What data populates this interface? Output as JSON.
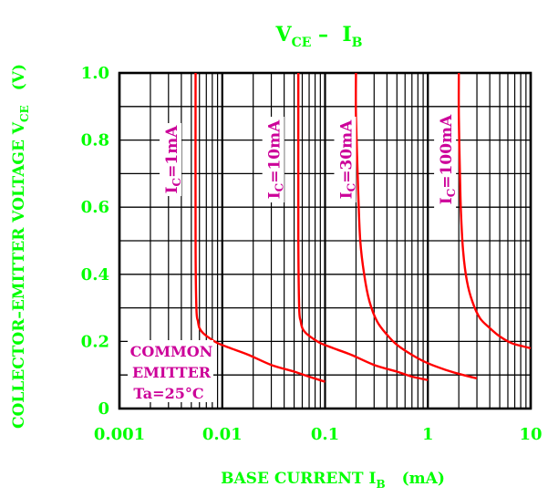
{
  "chart_data": {
    "type": "line",
    "title_main": "V",
    "title_sub1": "CE",
    "title_mid": " –  I",
    "title_sub2": "B",
    "xlabel_main": "BASE CURRENT I",
    "xlabel_sub": "B",
    "xlabel_unit": "(mA)",
    "ylabel_main": "COLLECTOR–EMITTER VOLTAGE V",
    "ylabel_sub": "CE",
    "ylabel_unit": "(V)",
    "x_scale": "log",
    "xlim": [
      0.001,
      10
    ],
    "ylim": [
      0,
      1.0
    ],
    "x_ticks": [
      {
        "v": 0.001,
        "label": "0.001"
      },
      {
        "v": 0.01,
        "label": "0.01"
      },
      {
        "v": 0.1,
        "label": "0.1"
      },
      {
        "v": 1,
        "label": "1"
      },
      {
        "v": 10,
        "label": "10"
      }
    ],
    "y_ticks": [
      {
        "v": 0,
        "label": "0"
      },
      {
        "v": 0.2,
        "label": "0.2"
      },
      {
        "v": 0.4,
        "label": "0.4"
      },
      {
        "v": 0.6,
        "label": "0.6"
      },
      {
        "v": 0.8,
        "label": "0.8"
      },
      {
        "v": 1.0,
        "label": "1.0"
      }
    ],
    "y_gridlines": [
      0.1,
      0.2,
      0.3,
      0.4,
      0.5,
      0.6,
      0.7,
      0.8,
      0.9
    ],
    "grid": true,
    "annotation_lines": [
      "COMMON",
      "EMITTER",
      "Ta=25°C"
    ],
    "series": [
      {
        "name": "IC=1mA",
        "label_main": "I",
        "label_sub": "C",
        "label_rest": "=1mA",
        "label_at": 0.0032,
        "x": [
          0.0055,
          0.0055,
          0.0056,
          0.0058,
          0.006,
          0.0065,
          0.0075,
          0.009,
          0.012,
          0.018,
          0.03,
          0.05,
          0.07,
          0.1
        ],
        "y": [
          1.0,
          0.5,
          0.3,
          0.26,
          0.24,
          0.225,
          0.21,
          0.195,
          0.18,
          0.16,
          0.13,
          0.11,
          0.095,
          0.08
        ]
      },
      {
        "name": "IC=10mA",
        "label_main": "I",
        "label_sub": "C",
        "label_rest": "=10mA",
        "label_at": 0.032,
        "x": [
          0.055,
          0.055,
          0.056,
          0.058,
          0.06,
          0.065,
          0.075,
          0.09,
          0.12,
          0.18,
          0.3,
          0.5,
          0.7,
          1.0
        ],
        "y": [
          1.0,
          0.5,
          0.3,
          0.26,
          0.24,
          0.225,
          0.21,
          0.195,
          0.18,
          0.16,
          0.13,
          0.11,
          0.095,
          0.085
        ]
      },
      {
        "name": "IC=30mA",
        "label_main": "I",
        "label_sub": "C",
        "label_rest": "=30mA",
        "label_at": 0.16,
        "x": [
          0.2,
          0.2,
          0.21,
          0.22,
          0.24,
          0.27,
          0.32,
          0.4,
          0.5,
          0.7,
          1.0,
          1.5,
          2.2,
          3.0
        ],
        "y": [
          1.0,
          0.87,
          0.65,
          0.5,
          0.4,
          0.32,
          0.26,
          0.22,
          0.19,
          0.16,
          0.135,
          0.115,
          0.1,
          0.09
        ]
      },
      {
        "name": "IC=100mA",
        "label_main": "I",
        "label_sub": "C",
        "label_rest": "=100mA",
        "label_at": 1.5,
        "x": [
          2.0,
          2.0,
          2.05,
          2.1,
          2.2,
          2.4,
          2.7,
          3.2,
          4.0,
          5.0,
          6.5,
          8.5,
          10.0
        ],
        "y": [
          1.0,
          0.87,
          0.7,
          0.58,
          0.47,
          0.38,
          0.32,
          0.27,
          0.24,
          0.215,
          0.195,
          0.185,
          0.18
        ]
      }
    ],
    "colors": {
      "axis_text": "#00ff00",
      "curve": "#ff0000",
      "series_label": "#cc0099",
      "grid": "#000000",
      "background": "#ffffff"
    }
  }
}
